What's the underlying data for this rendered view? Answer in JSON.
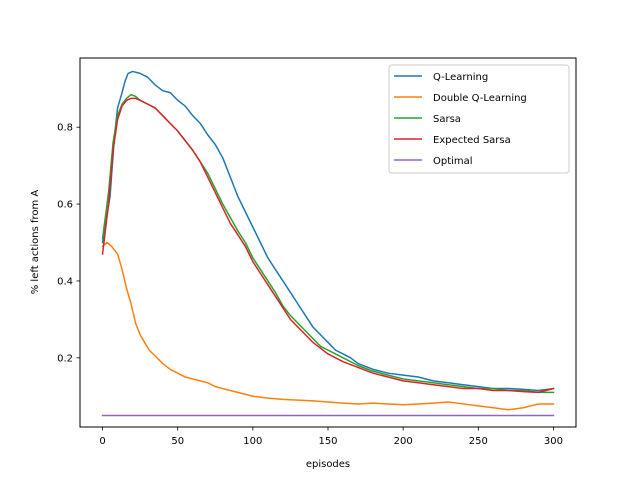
{
  "chart_data": {
    "type": "line",
    "title": "",
    "xlabel": "episodes",
    "ylabel": "% left actions from A",
    "xlim": [
      -15,
      315
    ],
    "ylim": [
      0.02,
      0.98
    ],
    "xticks": [
      0,
      50,
      100,
      150,
      200,
      250,
      300
    ],
    "yticks": [
      0.2,
      0.4,
      0.6,
      0.8
    ],
    "ytick_labels": [
      "0.2",
      "0.4",
      "0.6",
      "0.8"
    ],
    "grid": false,
    "legend_position": "top-right",
    "series": [
      {
        "name": "Q-Learning",
        "color": "#1f77b4",
        "points": [
          [
            0,
            0.5
          ],
          [
            5,
            0.62
          ],
          [
            8,
            0.78
          ],
          [
            10,
            0.85
          ],
          [
            13,
            0.89
          ],
          [
            15,
            0.92
          ],
          [
            17,
            0.94
          ],
          [
            20,
            0.945
          ],
          [
            25,
            0.94
          ],
          [
            30,
            0.93
          ],
          [
            35,
            0.91
          ],
          [
            40,
            0.895
          ],
          [
            45,
            0.89
          ],
          [
            50,
            0.87
          ],
          [
            55,
            0.855
          ],
          [
            60,
            0.83
          ],
          [
            65,
            0.81
          ],
          [
            70,
            0.78
          ],
          [
            75,
            0.755
          ],
          [
            80,
            0.72
          ],
          [
            85,
            0.67
          ],
          [
            90,
            0.62
          ],
          [
            95,
            0.58
          ],
          [
            100,
            0.54
          ],
          [
            105,
            0.5
          ],
          [
            110,
            0.46
          ],
          [
            115,
            0.43
          ],
          [
            120,
            0.4
          ],
          [
            125,
            0.37
          ],
          [
            130,
            0.34
          ],
          [
            135,
            0.31
          ],
          [
            140,
            0.28
          ],
          [
            145,
            0.26
          ],
          [
            150,
            0.24
          ],
          [
            155,
            0.22
          ],
          [
            160,
            0.21
          ],
          [
            165,
            0.2
          ],
          [
            170,
            0.185
          ],
          [
            180,
            0.17
          ],
          [
            190,
            0.16
          ],
          [
            200,
            0.155
          ],
          [
            210,
            0.15
          ],
          [
            220,
            0.14
          ],
          [
            230,
            0.135
          ],
          [
            240,
            0.13
          ],
          [
            250,
            0.125
          ],
          [
            260,
            0.12
          ],
          [
            270,
            0.12
          ],
          [
            280,
            0.118
          ],
          [
            290,
            0.115
          ],
          [
            300,
            0.12
          ]
        ]
      },
      {
        "name": "Double Q-Learning",
        "color": "#ff7f0e",
        "points": [
          [
            0,
            0.49
          ],
          [
            3,
            0.5
          ],
          [
            6,
            0.49
          ],
          [
            10,
            0.47
          ],
          [
            13,
            0.43
          ],
          [
            16,
            0.38
          ],
          [
            19,
            0.34
          ],
          [
            22,
            0.29
          ],
          [
            25,
            0.26
          ],
          [
            28,
            0.24
          ],
          [
            31,
            0.22
          ],
          [
            35,
            0.205
          ],
          [
            40,
            0.185
          ],
          [
            45,
            0.17
          ],
          [
            50,
            0.16
          ],
          [
            55,
            0.15
          ],
          [
            60,
            0.145
          ],
          [
            65,
            0.14
          ],
          [
            70,
            0.135
          ],
          [
            75,
            0.125
          ],
          [
            80,
            0.12
          ],
          [
            85,
            0.115
          ],
          [
            90,
            0.11
          ],
          [
            100,
            0.1
          ],
          [
            110,
            0.095
          ],
          [
            120,
            0.092
          ],
          [
            130,
            0.09
          ],
          [
            140,
            0.088
          ],
          [
            150,
            0.085
          ],
          [
            160,
            0.082
          ],
          [
            170,
            0.08
          ],
          [
            180,
            0.082
          ],
          [
            190,
            0.08
          ],
          [
            200,
            0.078
          ],
          [
            210,
            0.08
          ],
          [
            220,
            0.082
          ],
          [
            230,
            0.085
          ],
          [
            240,
            0.08
          ],
          [
            250,
            0.075
          ],
          [
            260,
            0.07
          ],
          [
            270,
            0.065
          ],
          [
            280,
            0.07
          ],
          [
            290,
            0.08
          ],
          [
            300,
            0.08
          ]
        ]
      },
      {
        "name": "Sarsa",
        "color": "#2ca02c",
        "points": [
          [
            0,
            0.51
          ],
          [
            4,
            0.63
          ],
          [
            7,
            0.76
          ],
          [
            10,
            0.83
          ],
          [
            13,
            0.86
          ],
          [
            16,
            0.875
          ],
          [
            19,
            0.885
          ],
          [
            22,
            0.88
          ],
          [
            25,
            0.87
          ],
          [
            30,
            0.86
          ],
          [
            35,
            0.85
          ],
          [
            40,
            0.83
          ],
          [
            45,
            0.81
          ],
          [
            50,
            0.79
          ],
          [
            55,
            0.765
          ],
          [
            60,
            0.74
          ],
          [
            65,
            0.71
          ],
          [
            70,
            0.68
          ],
          [
            75,
            0.64
          ],
          [
            80,
            0.6
          ],
          [
            85,
            0.565
          ],
          [
            90,
            0.53
          ],
          [
            95,
            0.5
          ],
          [
            100,
            0.46
          ],
          [
            105,
            0.43
          ],
          [
            110,
            0.4
          ],
          [
            115,
            0.37
          ],
          [
            120,
            0.335
          ],
          [
            125,
            0.31
          ],
          [
            130,
            0.29
          ],
          [
            135,
            0.27
          ],
          [
            140,
            0.25
          ],
          [
            145,
            0.23
          ],
          [
            150,
            0.22
          ],
          [
            155,
            0.21
          ],
          [
            160,
            0.2
          ],
          [
            170,
            0.18
          ],
          [
            180,
            0.165
          ],
          [
            190,
            0.155
          ],
          [
            200,
            0.145
          ],
          [
            210,
            0.14
          ],
          [
            220,
            0.135
          ],
          [
            230,
            0.13
          ],
          [
            240,
            0.125
          ],
          [
            250,
            0.12
          ],
          [
            260,
            0.12
          ],
          [
            270,
            0.115
          ],
          [
            280,
            0.115
          ],
          [
            290,
            0.11
          ],
          [
            300,
            0.11
          ]
        ]
      },
      {
        "name": "Expected Sarsa",
        "color": "#d62728",
        "points": [
          [
            0,
            0.47
          ],
          [
            4,
            0.6
          ],
          [
            7,
            0.74
          ],
          [
            10,
            0.82
          ],
          [
            13,
            0.855
          ],
          [
            16,
            0.87
          ],
          [
            19,
            0.875
          ],
          [
            22,
            0.875
          ],
          [
            25,
            0.87
          ],
          [
            30,
            0.86
          ],
          [
            35,
            0.85
          ],
          [
            40,
            0.83
          ],
          [
            45,
            0.81
          ],
          [
            50,
            0.79
          ],
          [
            55,
            0.765
          ],
          [
            60,
            0.74
          ],
          [
            65,
            0.71
          ],
          [
            70,
            0.67
          ],
          [
            75,
            0.63
          ],
          [
            80,
            0.59
          ],
          [
            85,
            0.55
          ],
          [
            90,
            0.52
          ],
          [
            95,
            0.49
          ],
          [
            100,
            0.45
          ],
          [
            105,
            0.42
          ],
          [
            110,
            0.39
          ],
          [
            115,
            0.36
          ],
          [
            120,
            0.33
          ],
          [
            125,
            0.3
          ],
          [
            130,
            0.28
          ],
          [
            135,
            0.26
          ],
          [
            140,
            0.24
          ],
          [
            145,
            0.225
          ],
          [
            150,
            0.21
          ],
          [
            155,
            0.2
          ],
          [
            160,
            0.19
          ],
          [
            170,
            0.175
          ],
          [
            180,
            0.16
          ],
          [
            190,
            0.15
          ],
          [
            200,
            0.14
          ],
          [
            210,
            0.135
          ],
          [
            220,
            0.13
          ],
          [
            230,
            0.125
          ],
          [
            240,
            0.12
          ],
          [
            250,
            0.12
          ],
          [
            260,
            0.115
          ],
          [
            270,
            0.115
          ],
          [
            280,
            0.112
          ],
          [
            290,
            0.11
          ],
          [
            300,
            0.12
          ]
        ]
      },
      {
        "name": "Optimal",
        "color": "#9467bd",
        "points": [
          [
            0,
            0.05
          ],
          [
            300,
            0.05
          ]
        ]
      }
    ]
  }
}
